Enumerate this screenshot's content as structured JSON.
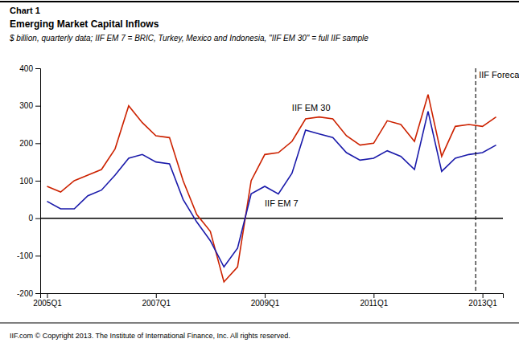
{
  "chart_data": {
    "type": "line",
    "title": [
      "Chart 1",
      "Emerging Market Capital Inflows"
    ],
    "subtitle": "$ billion, quarterly data; IIF EM 7 = BRIC, Turkey, Mexico and Indonesia, \"IIF EM 30\" = full IIF sample",
    "footer": "IIF.com © Copyright 2013.  The Institute of International Finance, Inc. All rights reserved.",
    "categories": [
      "2005Q1",
      null,
      null,
      null,
      null,
      null,
      null,
      null,
      "2007Q1",
      null,
      null,
      null,
      null,
      null,
      null,
      null,
      "2009Q1",
      null,
      null,
      null,
      null,
      null,
      null,
      null,
      "2011Q1",
      null,
      null,
      null,
      null,
      null,
      null,
      null,
      "2013Q1",
      null
    ],
    "series": [
      {
        "name": "IIF EM 30",
        "color": "#cc2200",
        "values": [
          85,
          70,
          100,
          115,
          130,
          185,
          300,
          255,
          220,
          215,
          100,
          10,
          -35,
          -170,
          -130,
          100,
          170,
          175,
          205,
          265,
          270,
          265,
          220,
          195,
          200,
          260,
          250,
          205,
          330,
          165,
          245,
          250,
          245,
          270
        ]
      },
      {
        "name": "IIF EM 7",
        "color": "#1a1aaa",
        "values": [
          45,
          25,
          25,
          60,
          75,
          115,
          160,
          170,
          150,
          145,
          50,
          -10,
          -60,
          -130,
          -80,
          65,
          85,
          65,
          120,
          235,
          225,
          215,
          175,
          155,
          160,
          180,
          165,
          130,
          285,
          125,
          160,
          170,
          175,
          195
        ]
      }
    ],
    "annotations": [
      {
        "text": "IIF Forecast",
        "x": "2013Q1"
      }
    ],
    "ylim": [
      -200,
      400
    ],
    "yticks": [
      -200,
      -100,
      0,
      100,
      200,
      300,
      400
    ],
    "grid": false
  }
}
